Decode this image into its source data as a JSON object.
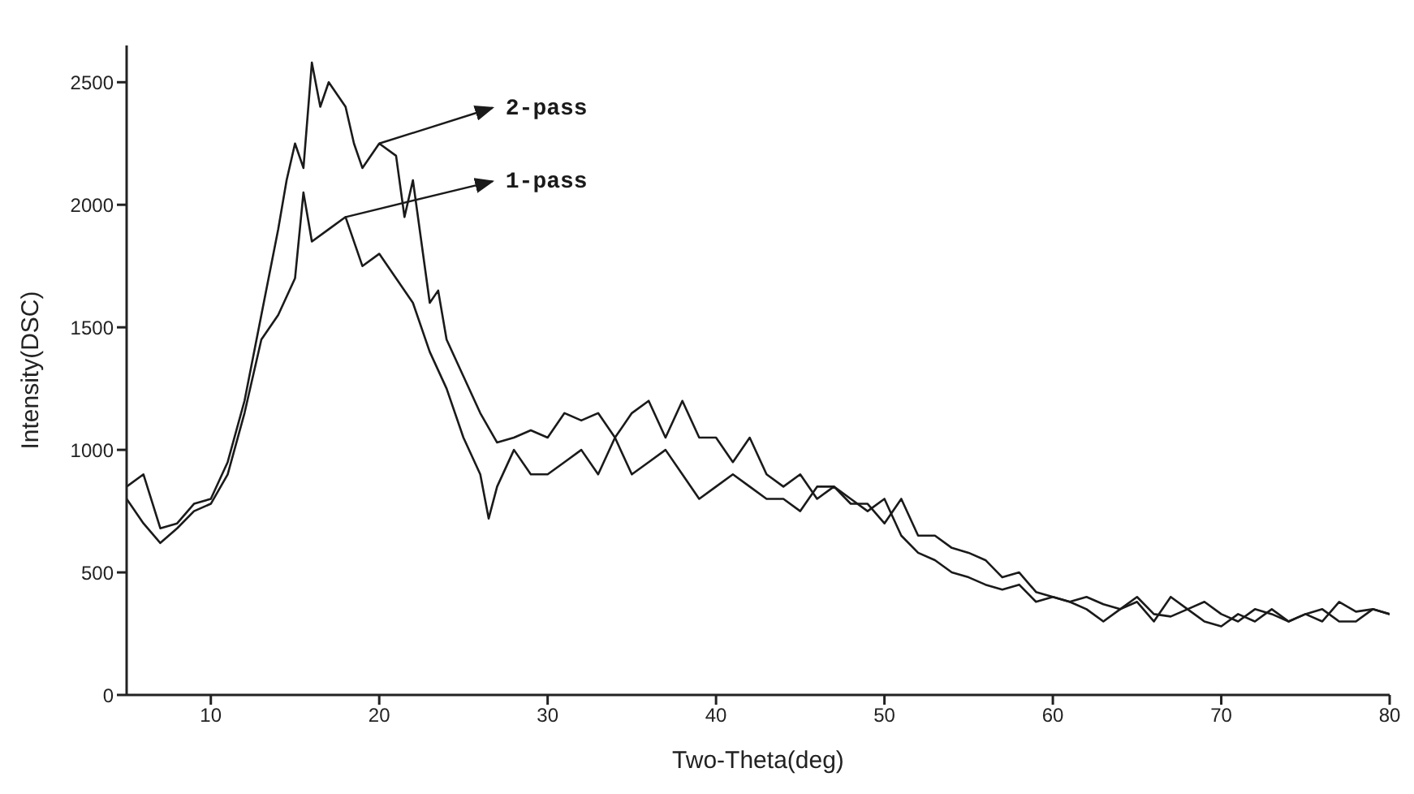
{
  "chart_data": {
    "type": "line",
    "xlabel": "Two-Theta(deg)",
    "ylabel": "Intensity(DSC)",
    "xlim": [
      5,
      80
    ],
    "xticks": [
      10,
      20,
      30,
      40,
      50,
      60,
      70,
      80
    ],
    "ylim": [
      0,
      2650
    ],
    "yticks": [
      0,
      500,
      1000,
      1500,
      2000,
      2500
    ],
    "grid": false,
    "legend": false,
    "marker": "none",
    "line_style": "solid",
    "series": [
      {
        "color": "#1a1a1a",
        "x": [
          5,
          6,
          7,
          8,
          9,
          10,
          11,
          12,
          13,
          14,
          14.5,
          15,
          15.5,
          16,
          16.5,
          17,
          18,
          18.5,
          19,
          20,
          21,
          21.5,
          22,
          23,
          23.5,
          24,
          25,
          26,
          27,
          28,
          29,
          30,
          31,
          32,
          33,
          34,
          35,
          36,
          37,
          38,
          39,
          40,
          41,
          42,
          43,
          44,
          45,
          46,
          47,
          48,
          49,
          50,
          51,
          52,
          53,
          54,
          55,
          56,
          57,
          58,
          59,
          60,
          61,
          62,
          63,
          64,
          65,
          66,
          67,
          68,
          69,
          70,
          71,
          72,
          73,
          74,
          75,
          76,
          77,
          78,
          79,
          80
        ],
        "values": [
          850,
          900,
          680,
          700,
          780,
          800,
          950,
          1200,
          1550,
          1900,
          2100,
          2250,
          2150,
          2580,
          2400,
          2500,
          2400,
          2250,
          2150,
          2250,
          2200,
          1950,
          2100,
          1600,
          1650,
          1450,
          1300,
          1150,
          1030,
          1050,
          1080,
          1050,
          1150,
          1120,
          1150,
          1050,
          1150,
          1200,
          1050,
          1200,
          1050,
          1050,
          950,
          1050,
          900,
          850,
          900,
          800,
          850,
          780,
          780,
          700,
          800,
          650,
          650,
          600,
          580,
          550,
          480,
          500,
          420,
          400,
          380,
          350,
          300,
          350,
          400,
          330,
          320,
          350,
          300,
          280,
          330,
          300,
          350,
          300,
          330,
          300,
          380,
          340,
          350,
          330
        ]
      },
      {
        "color": "#1a1a1a",
        "x": [
          5,
          6,
          7,
          8,
          9,
          10,
          11,
          12,
          13,
          14,
          15,
          15.5,
          16,
          17,
          18,
          19,
          20,
          21,
          22,
          23,
          24,
          25,
          26,
          26.5,
          27,
          28,
          29,
          30,
          31,
          32,
          33,
          34,
          35,
          36,
          37,
          38,
          39,
          40,
          41,
          42,
          43,
          44,
          45,
          46,
          47,
          48,
          49,
          50,
          51,
          52,
          53,
          54,
          55,
          56,
          57,
          58,
          59,
          60,
          61,
          62,
          63,
          64,
          65,
          66,
          67,
          68,
          69,
          70,
          71,
          72,
          73,
          74,
          75,
          76,
          77,
          78,
          79,
          80
        ],
        "values": [
          800,
          700,
          620,
          680,
          750,
          780,
          900,
          1150,
          1450,
          1550,
          1700,
          2050,
          1850,
          1900,
          1950,
          1750,
          1800,
          1700,
          1600,
          1400,
          1250,
          1050,
          900,
          720,
          850,
          1000,
          900,
          900,
          950,
          1000,
          900,
          1050,
          900,
          950,
          1000,
          900,
          800,
          850,
          900,
          850,
          800,
          800,
          750,
          850,
          850,
          800,
          750,
          800,
          650,
          580,
          550,
          500,
          480,
          450,
          430,
          450,
          380,
          400,
          380,
          400,
          370,
          350,
          380,
          300,
          400,
          350,
          380,
          330,
          300,
          350,
          330,
          300,
          330,
          350,
          300,
          300,
          350,
          330
        ]
      }
    ],
    "annotations": [
      {
        "text": "2-pass",
        "x": 20,
        "y": 2250
      },
      {
        "text": "1-pass",
        "x": 18,
        "y": 1950
      }
    ]
  }
}
